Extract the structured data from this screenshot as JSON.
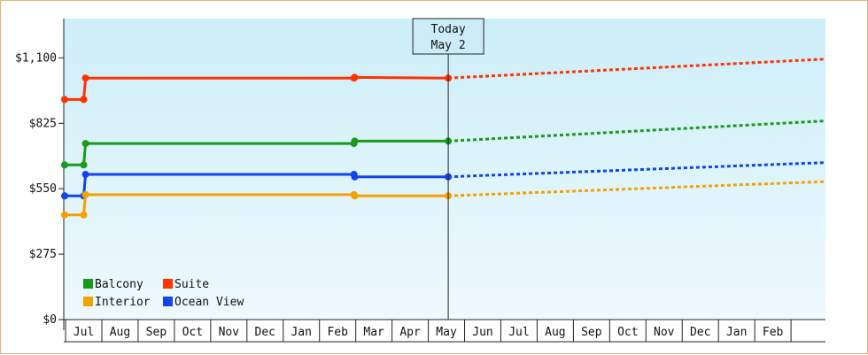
{
  "chart_data": {
    "type": "line",
    "title": "",
    "xlabel": "",
    "ylabel": "",
    "currency_prefix": "$",
    "ylim": [
      0,
      1265
    ],
    "yticks": [
      {
        "value": 0,
        "label": "$0"
      },
      {
        "value": 275,
        "label": "$275"
      },
      {
        "value": 550,
        "label": "$550"
      },
      {
        "value": 825,
        "label": "$825"
      },
      {
        "value": 1100,
        "label": "$1,100"
      }
    ],
    "x_months": [
      "Jul",
      "Aug",
      "Sep",
      "Oct",
      "Nov",
      "Dec",
      "Jan",
      "Feb",
      "Mar",
      "Apr",
      "May",
      "Jun",
      "Jul",
      "Aug",
      "Sep",
      "Oct",
      "Nov",
      "Dec",
      "Jan",
      "Feb"
    ],
    "x_range_months": [
      -0.55,
      20.45
    ],
    "today": {
      "line1": "Today",
      "line2": "May 2",
      "x": 10.05
    },
    "background": {
      "top": "#cdeef9",
      "bottom": "#eef9fd"
    },
    "legend": [
      {
        "name": "Balcony",
        "color": "#1a9a1a"
      },
      {
        "name": "Suite",
        "color": "#ff3300"
      },
      {
        "name": "Interior",
        "color": "#f5a100"
      },
      {
        "name": "Ocean View",
        "color": "#1144ee"
      }
    ],
    "series": [
      {
        "name": "Suite",
        "color": "#ff3300",
        "history_x": [
          -0.55,
          0.0,
          0.05,
          7.45,
          7.47,
          10.05
        ],
        "history_y": [
          925,
          925,
          1015,
          1015,
          1018,
          1015
        ],
        "forecast_x": [
          10.05,
          20.45
        ],
        "forecast_y": [
          1015,
          1095
        ]
      },
      {
        "name": "Balcony",
        "color": "#1a9a1a",
        "history_x": [
          -0.55,
          0.0,
          0.05,
          7.45,
          7.47,
          10.05
        ],
        "history_y": [
          650,
          650,
          740,
          740,
          750,
          750
        ],
        "forecast_x": [
          10.05,
          20.45
        ],
        "forecast_y": [
          750,
          835
        ]
      },
      {
        "name": "Ocean View",
        "color": "#1144ee",
        "history_x": [
          -0.55,
          0.0,
          0.05,
          7.45,
          7.47,
          10.05
        ],
        "history_y": [
          520,
          520,
          610,
          610,
          600,
          600
        ],
        "forecast_x": [
          10.05,
          20.45
        ],
        "forecast_y": [
          600,
          660
        ]
      },
      {
        "name": "Interior",
        "color": "#f5a100",
        "history_x": [
          -0.55,
          0.0,
          0.05,
          7.45,
          7.47,
          10.05
        ],
        "history_y": [
          440,
          440,
          525,
          525,
          520,
          520
        ],
        "forecast_x": [
          10.05,
          20.45
        ],
        "forecast_y": [
          520,
          580
        ]
      }
    ]
  }
}
